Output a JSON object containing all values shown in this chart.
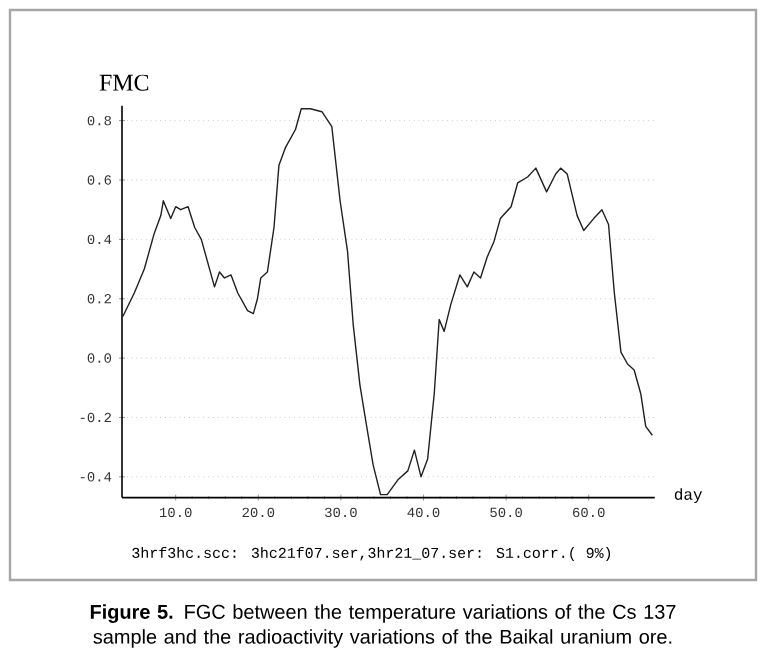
{
  "chart_data": {
    "type": "line",
    "ylabel": "FMC",
    "xlabel": "day",
    "annotations": [
      "3hrf3hc.scc: 3hc21f07.ser,3hr21_07.ser: S1.corr.( 9%)",
      "**Figure 5.** FGC between the temperature variations of the Cs 137 sample and the radioactivity variations of the Baikal uranium ore."
    ],
    "xlim": [
      3.5,
      68
    ],
    "ylim": [
      -0.47,
      0.85
    ],
    "xticks": [
      {
        "value": 10,
        "label": "10.0"
      },
      {
        "value": 20,
        "label": "20.0"
      },
      {
        "value": 30,
        "label": "30.0"
      },
      {
        "value": 40,
        "label": "40.0"
      },
      {
        "value": 50,
        "label": "50.0"
      },
      {
        "value": 60,
        "label": "60.0"
      }
    ],
    "yticks": [
      {
        "value": -0.4,
        "label": "-0.4"
      },
      {
        "value": -0.2,
        "label": "-0.2"
      },
      {
        "value": 0,
        "label": "0.0"
      },
      {
        "value": 0.2,
        "label": "0.2"
      },
      {
        "value": 0.4,
        "label": "0.4"
      },
      {
        "value": 0.6,
        "label": "0.6"
      },
      {
        "value": 0.8,
        "label": "0.8"
      }
    ],
    "grid": "y",
    "line_style": "solid",
    "marker": "none",
    "series": [
      {
        "color": "#202020",
        "x": [
          3.6,
          5.0,
          6.2,
          7.4,
          8.2,
          8.5,
          9.4,
          10,
          10.6,
          11.5,
          12.3,
          13.1,
          13.9,
          14.7,
          15.3,
          15.9,
          16.7,
          17.5,
          18.7,
          19.4,
          19.9,
          20.3,
          21.1,
          21.9,
          22.5,
          23.3,
          24.5,
          25.2,
          26.3,
          27.7,
          28.9,
          29.9,
          30.8,
          31.5,
          32.3,
          33.0,
          33.9,
          34.8,
          35.6,
          36.9,
          38.1,
          38.9,
          39.7,
          40.5,
          41.3,
          41.9,
          42.5,
          43.3,
          44.4,
          45.3,
          46.1,
          46.9,
          47.7,
          48.5,
          49.3,
          50.6,
          51.4,
          52.6,
          53.6,
          54.9,
          56.0,
          56.6,
          57.4,
          58.6,
          59.4,
          60.6,
          61.6,
          62.4,
          63.1,
          63.9,
          64.7,
          65.5,
          66.3,
          66.9,
          67.7
        ],
        "values": [
          0.14,
          0.22,
          0.3,
          0.42,
          0.48,
          0.53,
          0.47,
          0.51,
          0.5,
          0.51,
          0.44,
          0.4,
          0.32,
          0.24,
          0.29,
          0.27,
          0.28,
          0.22,
          0.16,
          0.15,
          0.2,
          0.27,
          0.29,
          0.44,
          0.65,
          0.71,
          0.77,
          0.84,
          0.84,
          0.83,
          0.78,
          0.53,
          0.36,
          0.11,
          -0.09,
          -0.21,
          -0.36,
          -0.46,
          -0.46,
          -0.41,
          -0.38,
          -0.31,
          -0.4,
          -0.34,
          -0.12,
          0.13,
          0.09,
          0.18,
          0.28,
          0.24,
          0.29,
          0.27,
          0.34,
          0.39,
          0.47,
          0.51,
          0.59,
          0.61,
          0.64,
          0.56,
          0.62,
          0.64,
          0.62,
          0.48,
          0.43,
          0.47,
          0.5,
          0.45,
          0.22,
          0.02,
          -0.02,
          -0.04,
          -0.12,
          -0.23,
          -0.26
        ]
      }
    ]
  }
}
